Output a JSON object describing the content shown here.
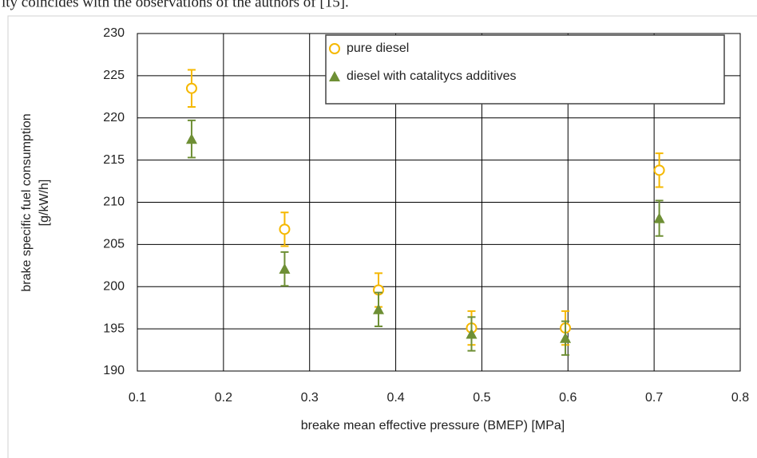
{
  "text_above": "ity coincides with the observations of the authors of [15].",
  "chart_data": {
    "type": "scatter",
    "xlabel": "breake mean effective pressure (BMEP) [MPa]",
    "ylabel": [
      "brake specific fuel consumption",
      "[g/kW/h]"
    ],
    "x": [
      0.163,
      0.271,
      0.38,
      0.488,
      0.597,
      0.706
    ],
    "series": [
      {
        "name": "pure diesel",
        "color": "#f5b800",
        "marker": "circle",
        "values": [
          223.5,
          206.8,
          199.6,
          195.1,
          195.1,
          213.8
        ],
        "errors": [
          2.2,
          2.0,
          2.0,
          2.0,
          2.0,
          2.0
        ]
      },
      {
        "name": "diesel with catalitycs additives",
        "color": "#6e8f35",
        "marker": "triangle",
        "values": [
          217.5,
          202.1,
          197.3,
          194.4,
          193.9,
          208.1
        ],
        "errors": [
          2.2,
          2.0,
          2.0,
          2.0,
          2.0,
          2.1
        ]
      }
    ],
    "xlim": [
      0.1,
      0.8
    ],
    "xticks": [
      0.1,
      0.2,
      0.3,
      0.4,
      0.5,
      0.6,
      0.7,
      0.8
    ],
    "ylim": [
      190,
      230
    ],
    "yticks": [
      190,
      195,
      200,
      205,
      210,
      215,
      220,
      225,
      230
    ],
    "grid": true,
    "legend": "upper right"
  }
}
